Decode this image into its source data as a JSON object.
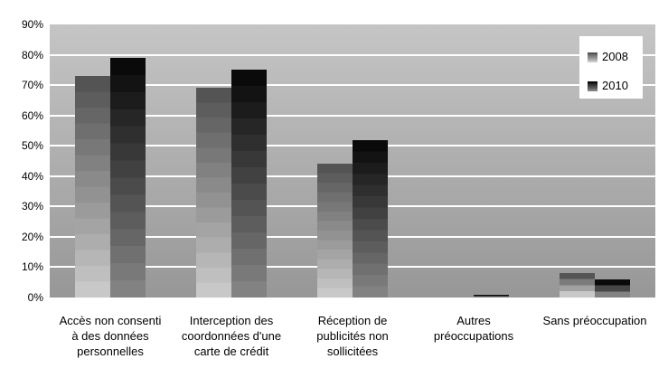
{
  "chart_data": {
    "type": "bar",
    "title": "",
    "xlabel": "",
    "ylabel": "",
    "categories": [
      "Accès non consenti\nà des données\npersonnelles",
      "Interception des\ncoordonnées d'une\ncarte de crédit",
      "Réception de\npublicités non\nsollicitées",
      "Autres\npréoccupations",
      "Sans préoccupation"
    ],
    "series": [
      {
        "name": "2008",
        "values": [
          73,
          69,
          44,
          0,
          8
        ],
        "color_top": "#545454",
        "color_bottom": "#c8c8c8"
      },
      {
        "name": "2010",
        "values": [
          79,
          75,
          52,
          1,
          6
        ],
        "color_top": "#0a0a0a",
        "color_bottom": "#828282"
      }
    ],
    "ylim": [
      0,
      90
    ],
    "ytick_step": 10,
    "ytick_labels": [
      "0%",
      "10%",
      "20%",
      "30%",
      "40%",
      "50%",
      "60%",
      "70%",
      "80%",
      "90%"
    ],
    "grid": true,
    "gridline_color": "#ffffff",
    "plot_bg_top": "#c5c5c5",
    "plot_bg_bottom": "#979797",
    "legend_position": "top-right"
  },
  "legend": {
    "items": [
      {
        "label": "2008"
      },
      {
        "label": "2010"
      }
    ]
  }
}
